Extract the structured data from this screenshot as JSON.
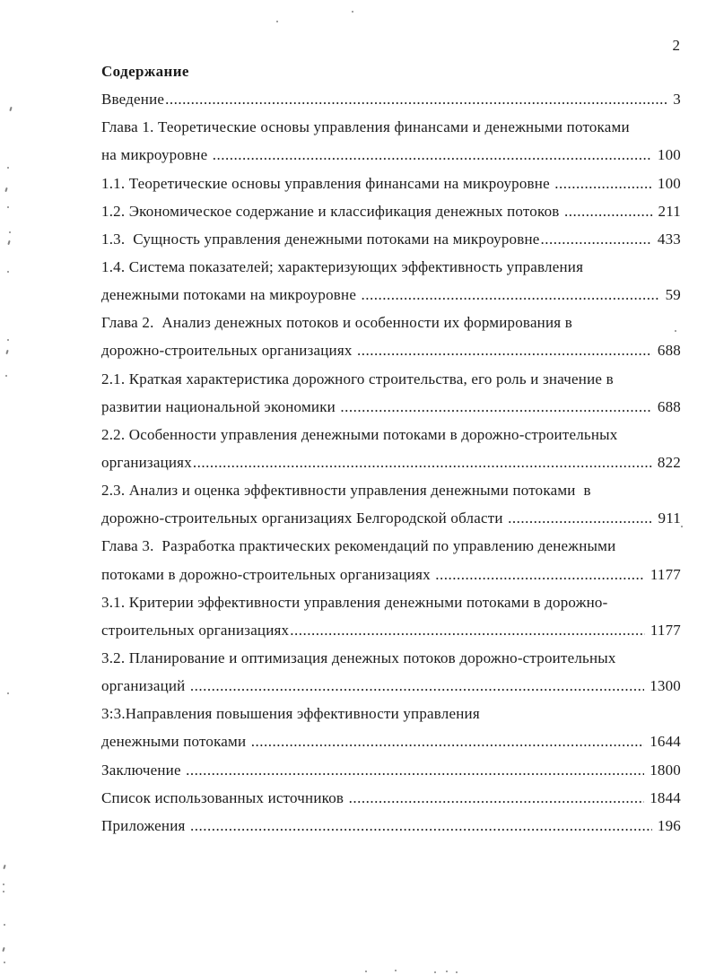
{
  "page_number": "2",
  "title": "Содержание",
  "toc": {
    "lines": [
      {
        "text": "Введение",
        "dots": true,
        "page": "3"
      },
      {
        "text": "Глава 1. Теоретические основы управления финансами и денежными потоками",
        "dots": false,
        "page": ""
      },
      {
        "text": "на микроуровне ",
        "dots": true,
        "page": "100"
      },
      {
        "text": "1.1. Теоретические основы управления финансами на микроуровне ",
        "dots": true,
        "page": "100"
      },
      {
        "text": "1.2. Экономическое содержание и классификация денежных потоков ",
        "dots": true,
        "page": "211"
      },
      {
        "text": "1.3.  Сущность управления денежными потоками на микроуровне",
        "dots": true,
        "page": "433"
      },
      {
        "text": "1.4. Система показателей; характеризующих эффективность управления",
        "dots": false,
        "page": ""
      },
      {
        "text": "денежными потоками на микроуровне ",
        "dots": true,
        "page": "59"
      },
      {
        "text": "Глава 2.  Анализ денежных потоков и особенности их формирования в",
        "dots": false,
        "page": ""
      },
      {
        "text": "дорожно-строительных организациях ",
        "dots": true,
        "page": "688"
      },
      {
        "text": "2.1. Краткая характеристика дорожного строительства, его роль и значение в",
        "dots": false,
        "page": ""
      },
      {
        "text": "развитии национальной экономики ",
        "dots": true,
        "page": "688"
      },
      {
        "text": "2.2. Особенности управления денежными потоками в дорожно-строительных",
        "dots": false,
        "page": ""
      },
      {
        "text": "организациях",
        "dots": true,
        "page": "822"
      },
      {
        "text": "2.3. Анализ и оценка эффективности управления денежными потоками  в",
        "dots": false,
        "page": ""
      },
      {
        "text": "дорожно-строительных организациях Белгородской области ",
        "dots": true,
        "page": "911"
      },
      {
        "text": "Глава 3.  Разработка практических рекомендаций по управлению денежными",
        "dots": false,
        "page": ""
      },
      {
        "text": "потоками в дорожно-строительных организациях ",
        "dots": true,
        "page": "1177"
      },
      {
        "text": "3.1. Критерии эффективности управления денежными потоками в дорожно-",
        "dots": false,
        "page": ""
      },
      {
        "text": "строительных организациях",
        "dots": true,
        "page": "1177"
      },
      {
        "text": "3.2. Планирование и оптимизация денежных потоков дорожно-строительных",
        "dots": false,
        "page": ""
      },
      {
        "text": "организаций ",
        "dots": true,
        "page": "1300"
      },
      {
        "text": "3:3.Направления повышения эффективности управления",
        "dots": false,
        "page": ""
      },
      {
        "text": "денежными потоками ",
        "dots": true,
        "page": "1644"
      },
      {
        "text": "Заключение ",
        "dots": true,
        "page": "1800"
      },
      {
        "text": "Список использованных источников ",
        "dots": true,
        "page": "1844"
      },
      {
        "text": "Приложения ",
        "dots": true,
        "page": "196"
      }
    ]
  }
}
